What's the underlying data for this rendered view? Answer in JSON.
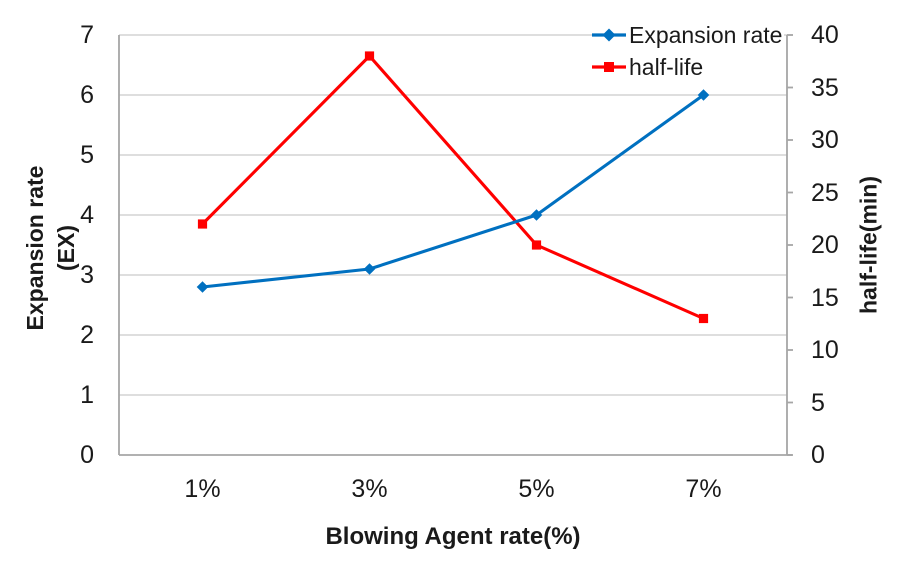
{
  "chart_data": {
    "type": "line",
    "title": "",
    "categories": [
      "1%",
      "3%",
      "5%",
      "7%"
    ],
    "series": [
      {
        "name": "Expansion rate",
        "axis": "left",
        "color": "#0070C0",
        "marker": "diamond",
        "values": [
          2.8,
          3.1,
          4.0,
          6.0
        ]
      },
      {
        "name": "half-life",
        "axis": "right",
        "color": "#FF0000",
        "marker": "square",
        "values": [
          22,
          38,
          20,
          13
        ]
      }
    ],
    "xlabel": "Blowing Agent rate(%)",
    "ylabel_left_lines": [
      "Expansion rate",
      "(EX)"
    ],
    "ylabel_right": "half-life(min)",
    "y_left": {
      "min": 0,
      "max": 7,
      "step": 1,
      "ticks": [
        0,
        1,
        2,
        3,
        4,
        5,
        6,
        7
      ]
    },
    "y_right": {
      "min": 0,
      "max": 40,
      "step": 5,
      "ticks": [
        0,
        5,
        10,
        15,
        20,
        25,
        30,
        35,
        40
      ]
    },
    "grid": "horizontal-major",
    "legend_position": "top-right-inside"
  },
  "colors": {
    "grid": "#C9C9C9",
    "axis": "#A6A6A6",
    "text": "#1A1A1A",
    "background": "#FFFFFF"
  }
}
